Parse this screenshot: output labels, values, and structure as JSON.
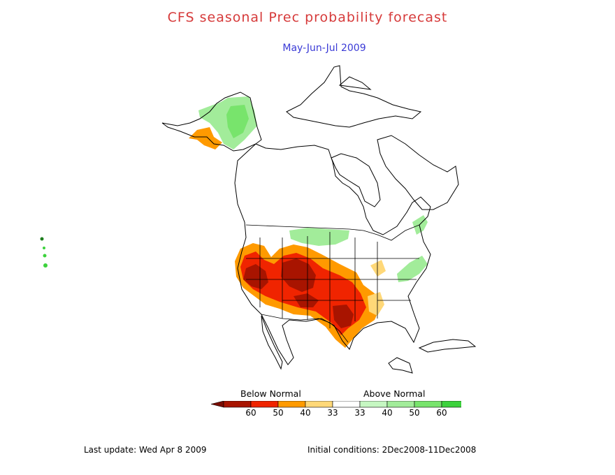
{
  "header": {
    "title": "CFS seasonal Prec probability forecast",
    "season": "May-Jun-Jul 2009"
  },
  "legend": {
    "below_label": "Below Normal",
    "above_label": "Above Normal",
    "bins": [
      {
        "label": "60",
        "color": "#a81400"
      },
      {
        "label": "50",
        "color": "#f02400"
      },
      {
        "label": "40",
        "color": "#ff9a00"
      },
      {
        "label": "33",
        "color": "#ffd878"
      },
      {
        "label": "",
        "color": "#ffffff"
      },
      {
        "label": "33",
        "color": "#c6f7c2"
      },
      {
        "label": "40",
        "color": "#a2ec9a"
      },
      {
        "label": "50",
        "color": "#78e46c"
      },
      {
        "label": "60",
        "color": "#3cd23c"
      }
    ],
    "end_below_color": "#7a0c00",
    "end_above_color": "#1e9e1e"
  },
  "footer": {
    "last_update": "Last update: Wed Apr 8 2009",
    "initial_conditions": "Initial conditions: 2Dec2008-11Dec2008"
  }
}
